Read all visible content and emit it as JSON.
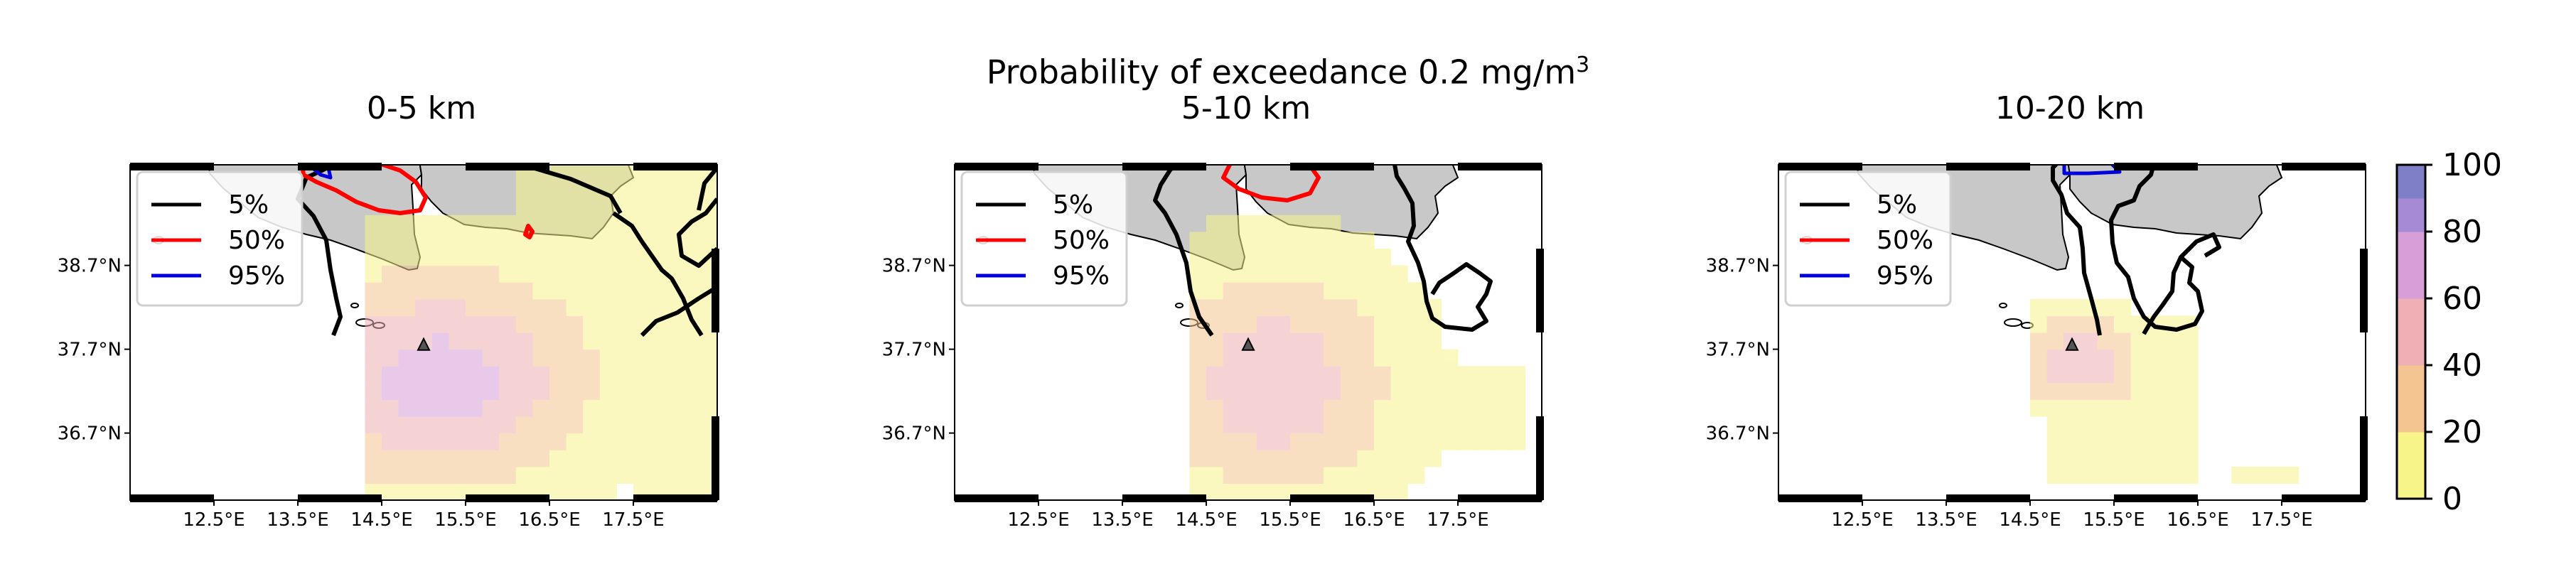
{
  "figure": {
    "suptitle_main": "Probability of exceedance 0.2 mg/m",
    "suptitle_sup": "3",
    "colorbar": {
      "ticks": [
        "0",
        "20",
        "40",
        "60",
        "80",
        "100"
      ],
      "colors": [
        "#f7f48a",
        "#f4c590",
        "#eeb0b4",
        "#d79ed8",
        "#a78ad6",
        "#7f7fc8"
      ]
    }
  },
  "chart_data": [
    {
      "type": "heatmap",
      "title": "0-5 km",
      "xticklabels": [
        "12.5°E",
        "13.5°E",
        "14.5°E",
        "15.5°E",
        "16.5°E",
        "17.5°E"
      ],
      "yticklabels": [
        "38.7°N",
        "37.7°N",
        "36.7°N"
      ],
      "xlim": [
        11.5,
        18.5
      ],
      "ylim": [
        35.9,
        39.9
      ],
      "legend": [
        "5%",
        "50%",
        "95%"
      ],
      "contour_colors": {
        "5%": "#000000",
        "50%": "#ff0000",
        "95%": "#0000dd"
      },
      "vent": {
        "lon": 15.0,
        "lat": 37.75
      },
      "probability_range": [
        0,
        100
      ]
    },
    {
      "type": "heatmap",
      "title": "5-10 km",
      "xticklabels": [
        "12.5°E",
        "13.5°E",
        "14.5°E",
        "15.5°E",
        "16.5°E",
        "17.5°E"
      ],
      "yticklabels": [
        "38.7°N",
        "37.7°N",
        "36.7°N"
      ],
      "xlim": [
        11.5,
        18.5
      ],
      "ylim": [
        35.9,
        39.9
      ],
      "legend": [
        "5%",
        "50%",
        "95%"
      ],
      "contour_colors": {
        "5%": "#000000",
        "50%": "#ff0000",
        "95%": "#0000dd"
      },
      "vent": {
        "lon": 15.0,
        "lat": 37.75
      },
      "probability_range": [
        0,
        100
      ]
    },
    {
      "type": "heatmap",
      "title": "10-20 km",
      "xticklabels": [
        "12.5°E",
        "13.5°E",
        "14.5°E",
        "15.5°E",
        "16.5°E",
        "17.5°E"
      ],
      "yticklabels": [
        "38.7°N",
        "37.7°N",
        "36.7°N"
      ],
      "xlim": [
        11.5,
        18.5
      ],
      "ylim": [
        35.9,
        39.9
      ],
      "legend": [
        "5%",
        "50%",
        "95%"
      ],
      "contour_colors": {
        "5%": "#000000",
        "50%": "#ff0000",
        "95%": "#0000dd"
      },
      "vent": {
        "lon": 15.0,
        "lat": 37.75
      },
      "probability_range": [
        0,
        100
      ]
    }
  ]
}
